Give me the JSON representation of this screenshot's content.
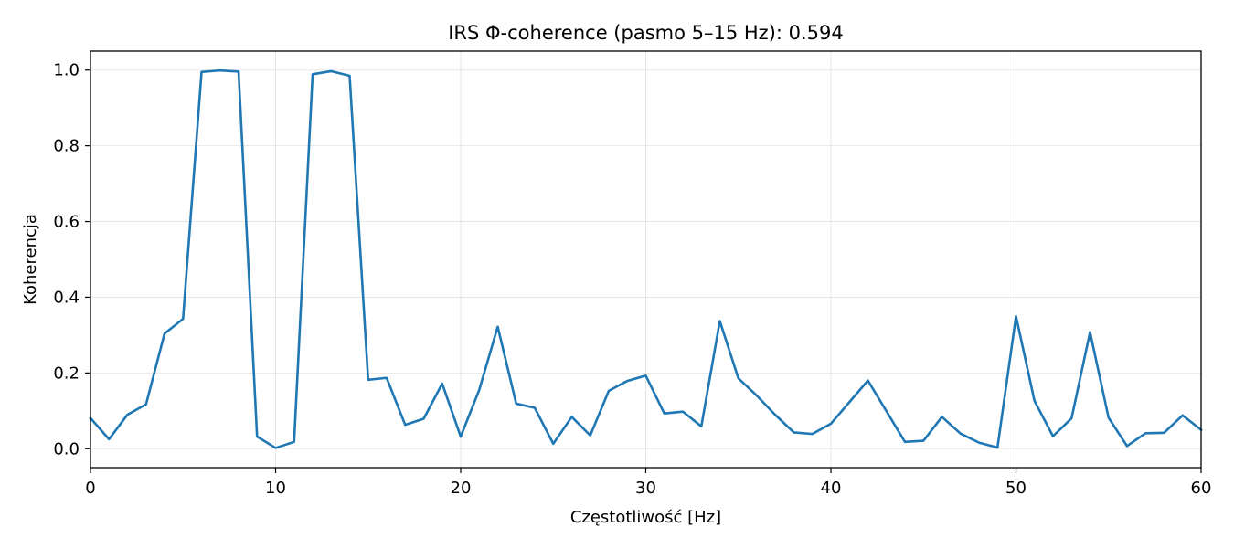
{
  "chart_data": {
    "type": "line",
    "title": "IRS Φ-coherence (pasmo 5–15 Hz): 0.594",
    "xlabel": "Częstotliwość [Hz]",
    "ylabel": "Koherencja",
    "xlim": [
      0,
      60
    ],
    "ylim": [
      -0.05,
      1.05
    ],
    "xticks": [
      0,
      10,
      20,
      30,
      40,
      50,
      60
    ],
    "xtick_labels": [
      "0",
      "10",
      "20",
      "30",
      "40",
      "50",
      "60"
    ],
    "yticks": [
      0.0,
      0.2,
      0.4,
      0.6,
      0.8,
      1.0
    ],
    "ytick_labels": [
      "0.0",
      "0.2",
      "0.4",
      "0.6",
      "0.8",
      "1.0"
    ],
    "grid": true,
    "series": [
      {
        "name": "coherence",
        "color": "#1f77b4",
        "x": [
          0,
          1,
          2,
          3,
          4,
          5,
          6,
          7,
          8,
          9,
          10,
          11,
          12,
          13,
          14,
          15,
          16,
          17,
          18,
          19,
          20,
          21,
          22,
          23,
          24,
          25,
          26,
          27,
          28,
          29,
          30,
          31,
          32,
          33,
          34,
          35,
          36,
          37,
          38,
          39,
          40,
          41,
          42,
          43,
          44,
          45,
          46,
          47,
          48,
          49,
          50,
          51,
          52,
          53,
          54,
          55,
          56,
          57,
          58,
          59,
          60
        ],
        "values": [
          0.081,
          0.025,
          0.09,
          0.117,
          0.304,
          0.343,
          0.995,
          0.999,
          0.996,
          0.032,
          0.002,
          0.018,
          0.989,
          0.997,
          0.985,
          0.182,
          0.187,
          0.063,
          0.079,
          0.172,
          0.032,
          0.155,
          0.322,
          0.119,
          0.108,
          0.013,
          0.084,
          0.035,
          0.153,
          0.179,
          0.193,
          0.093,
          0.098,
          0.059,
          0.337,
          0.186,
          0.14,
          0.089,
          0.043,
          0.039,
          0.066,
          0.123,
          0.18,
          0.099,
          0.018,
          0.021,
          0.084,
          0.04,
          0.016,
          0.003,
          0.35,
          0.126,
          0.033,
          0.08,
          0.308,
          0.082,
          0.007,
          0.041,
          0.042,
          0.088,
          0.05
        ]
      }
    ]
  }
}
